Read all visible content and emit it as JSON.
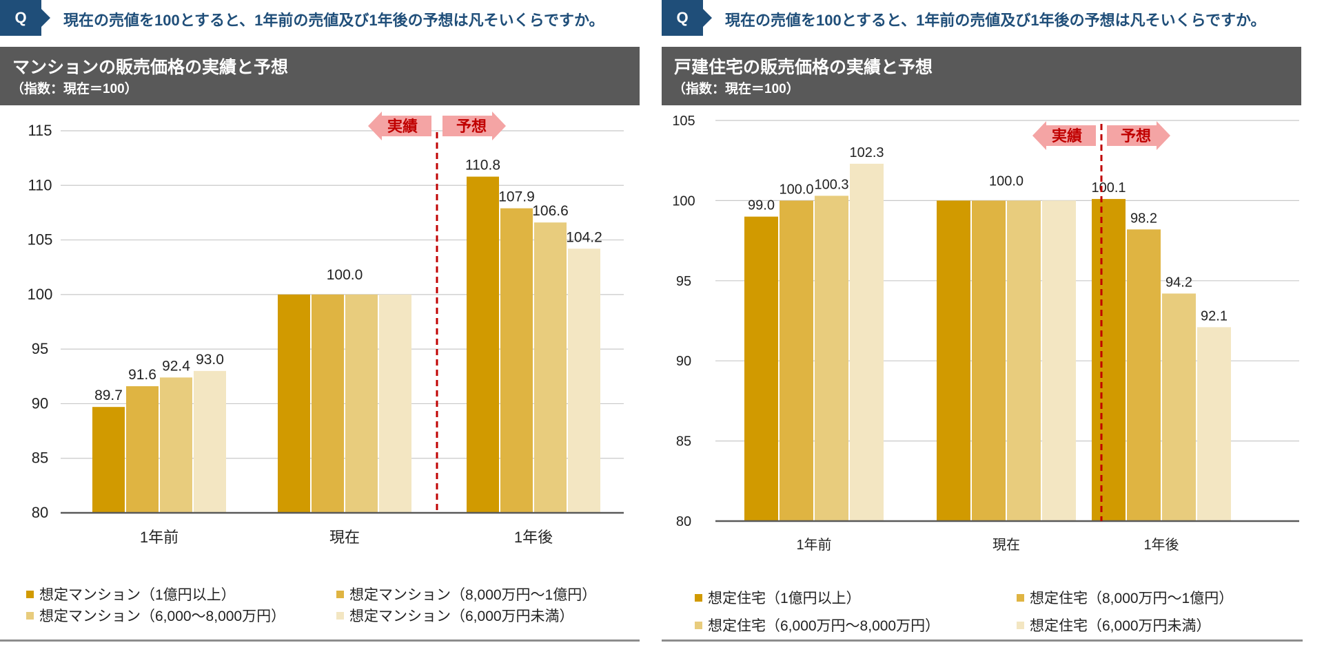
{
  "colors": {
    "navy": "#1f4e79",
    "header_gray": "#595959",
    "series": [
      "#d19a00",
      "#dfb442",
      "#e8cc7d",
      "#f3e6c2"
    ],
    "divider": "#c00000",
    "arrow_fill": "#f4a4a4"
  },
  "left": {
    "q_label": "Q",
    "question": "現在の売値を100とすると、1年前の売値及び1年後の予想は凡そいくらですか。",
    "title": "マンションの販売価格の実績と予想",
    "subtitle": "（指数：現在＝100）",
    "actual_label": "実績",
    "forecast_label": "予想",
    "legend": [
      "想定マンション（1億円以上）",
      "想定マンション（8,000万円～1億円）",
      "想定マンション（6,000～8,000万円）",
      "想定マンション（6,000万円未満）"
    ]
  },
  "right": {
    "q_label": "Q",
    "question": "現在の売値を100とすると、1年前の売値及び1年後の予想は凡そいくらですか。",
    "title": "戸建住宅の販売価格の実績と予想",
    "subtitle": "（指数：現在＝100）",
    "actual_label": "実績",
    "forecast_label": "予想",
    "legend": [
      "想定住宅（1億円以上）",
      "想定住宅（8,000万円～1億円）",
      "想定住宅（6,000万円～8,000万円）",
      "想定住宅（6,000万円未満）"
    ]
  },
  "chart_data": [
    {
      "type": "bar",
      "title": "マンションの販売価格の実績と予想",
      "ylabel": "指数：現在＝100",
      "categories": [
        "1年前",
        "現在",
        "1年後"
      ],
      "ylim": [
        80,
        115
      ],
      "yticks": [
        80,
        85,
        90,
        95,
        100,
        105,
        110,
        115
      ],
      "series": [
        {
          "name": "想定マンション（1億円以上）",
          "values": [
            89.7,
            100,
            110.8
          ],
          "labels": [
            "89.7",
            "",
            "110.8"
          ]
        },
        {
          "name": "想定マンション（8,000万円～1億円）",
          "values": [
            91.6,
            100,
            107.9
          ],
          "labels": [
            "91.6",
            "100.0",
            "107.9"
          ]
        },
        {
          "name": "想定マンション（6,000～8,000万円）",
          "values": [
            92.4,
            100,
            106.6
          ],
          "labels": [
            "92.4",
            "",
            "106.6"
          ]
        },
        {
          "name": "想定マンション（6,000万円未満）",
          "values": [
            93.0,
            100,
            104.2
          ],
          "labels": [
            "93.0",
            "",
            "104.2"
          ]
        }
      ]
    },
    {
      "type": "bar",
      "title": "戸建住宅の販売価格の実績と予想",
      "ylabel": "指数：現在＝100",
      "categories": [
        "1年前",
        "現在",
        "1年後"
      ],
      "ylim": [
        80,
        105
      ],
      "yticks": [
        80,
        85,
        90,
        95,
        100,
        105
      ],
      "series": [
        {
          "name": "想定住宅（1億円以上）",
          "values": [
            99.0,
            100,
            100.1
          ],
          "labels": [
            "99.0",
            "",
            "100.1"
          ]
        },
        {
          "name": "想定住宅（8,000万円～1億円）",
          "values": [
            100.0,
            100,
            98.2
          ],
          "labels": [
            "100.0",
            "100.0",
            "98.2"
          ]
        },
        {
          "name": "想定住宅（6,000万円～8,000万円）",
          "values": [
            100.3,
            100,
            94.2
          ],
          "labels": [
            "100.3",
            "",
            "94.2"
          ]
        },
        {
          "name": "想定住宅（6,000万円未満）",
          "values": [
            102.3,
            100,
            92.1
          ],
          "labels": [
            "102.3",
            "",
            "92.1"
          ]
        }
      ]
    }
  ]
}
